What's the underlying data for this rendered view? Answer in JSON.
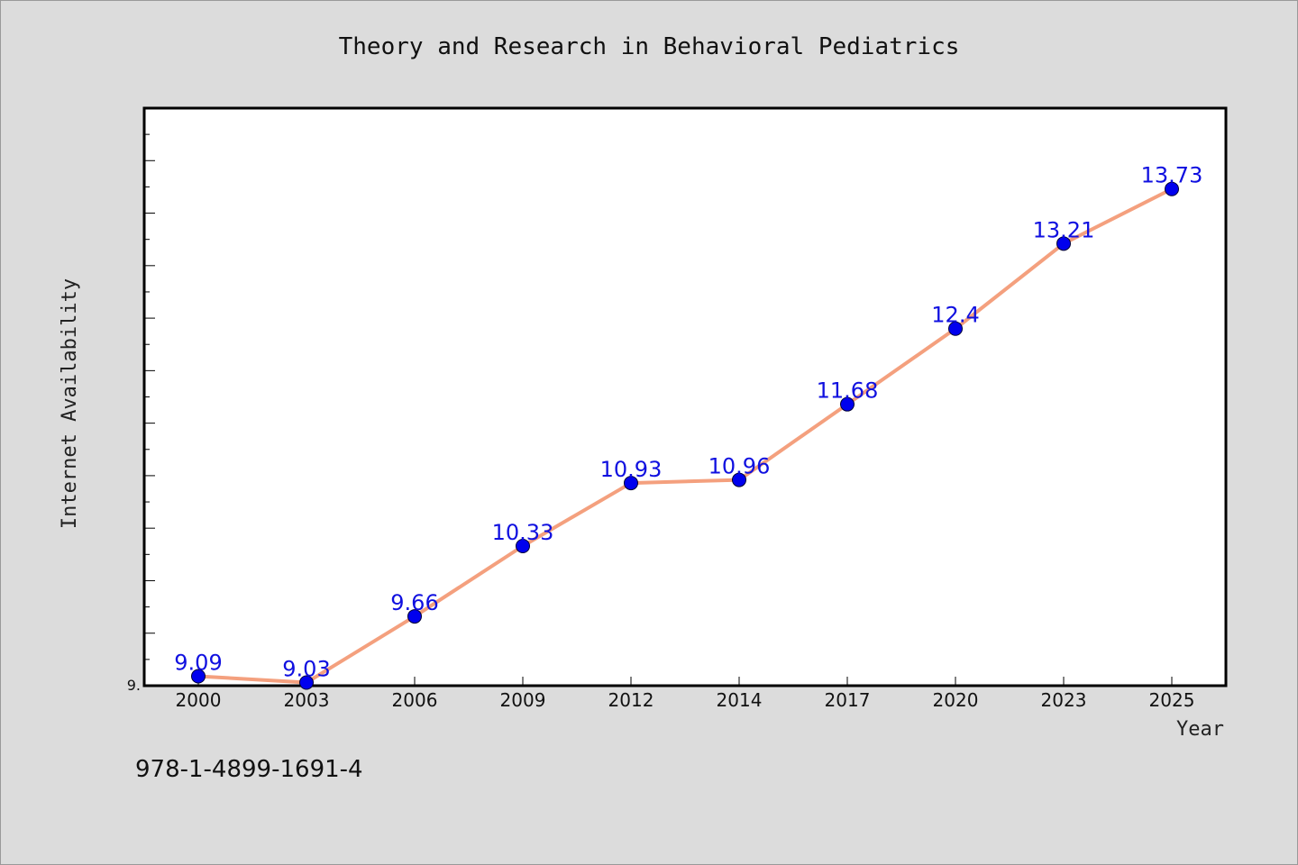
{
  "chart_data": {
    "type": "line",
    "title": "Theory and Research in Behavioral Pediatrics",
    "xlabel": "Year",
    "ylabel": "Internet Availability",
    "categories": [
      "2000",
      "2003",
      "2006",
      "2009",
      "2012",
      "2014",
      "2017",
      "2020",
      "2023",
      "2025"
    ],
    "series": [
      {
        "values": [
          9.09,
          9.03,
          9.66,
          10.33,
          10.93,
          10.96,
          11.68,
          12.4,
          13.21,
          13.73
        ]
      }
    ],
    "data_labels": [
      "9.09",
      "9.03",
      "9.66",
      "10.33",
      "10.93",
      "10.96",
      "11.68",
      "12.4",
      "13.21",
      "13.73"
    ],
    "ytick_label": "9.",
    "ylim": [
      9.0,
      14.5
    ],
    "grid": false,
    "colors": {
      "line": "#f4a07e",
      "marker": "#0000ee",
      "label": "#1010e0",
      "background": "#dcdcdc",
      "plot_background": "#ffffff"
    }
  },
  "footer": {
    "isbn": "978-1-4899-1691-4"
  }
}
